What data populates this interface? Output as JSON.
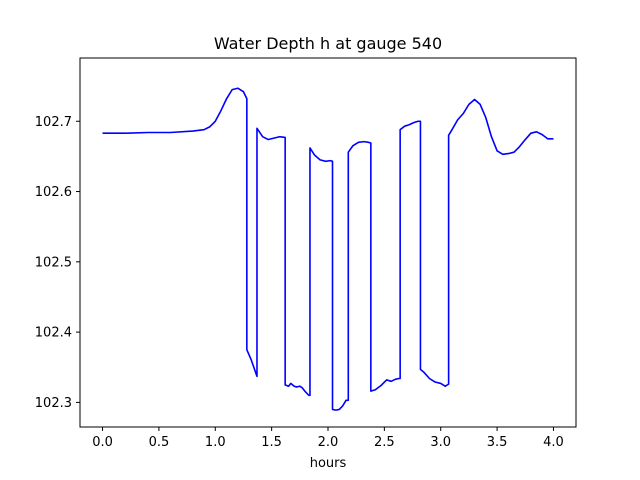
{
  "chart_data": {
    "type": "line",
    "title": "Water Depth h at gauge 540",
    "xlabel": "hours",
    "ylabel": "",
    "xlim": [
      -0.2,
      4.2
    ],
    "ylim": [
      102.265,
      102.79
    ],
    "xticks": [
      0.0,
      0.5,
      1.0,
      1.5,
      2.0,
      2.5,
      3.0,
      3.5,
      4.0
    ],
    "xtick_labels": [
      "0.0",
      "0.5",
      "1.0",
      "1.5",
      "2.0",
      "2.5",
      "3.0",
      "3.5",
      "4.0"
    ],
    "yticks": [
      102.3,
      102.4,
      102.5,
      102.6,
      102.7
    ],
    "ytick_labels": [
      "102.3",
      "102.4",
      "102.5",
      "102.6",
      "102.7"
    ],
    "grid": false,
    "legend": "none",
    "series": [
      {
        "color": "#0000ff",
        "x": [
          0.0,
          0.2,
          0.4,
          0.6,
          0.8,
          0.9,
          0.95,
          1.0,
          1.05,
          1.1,
          1.15,
          1.2,
          1.25,
          1.28,
          1.28,
          1.32,
          1.37,
          1.37,
          1.42,
          1.47,
          1.52,
          1.57,
          1.62,
          1.62,
          1.65,
          1.67,
          1.7,
          1.72,
          1.75,
          1.77,
          1.8,
          1.83,
          1.84,
          1.84,
          1.88,
          1.93,
          1.98,
          2.02,
          2.04,
          2.04,
          2.07,
          2.1,
          2.13,
          2.16,
          2.18,
          2.18,
          2.22,
          2.27,
          2.32,
          2.36,
          2.38,
          2.38,
          2.42,
          2.47,
          2.52,
          2.56,
          2.6,
          2.63,
          2.64,
          2.64,
          2.68,
          2.72,
          2.76,
          2.8,
          2.82,
          2.82,
          2.85,
          2.9,
          2.95,
          3.0,
          3.04,
          3.07,
          3.07,
          3.1,
          3.15,
          3.2,
          3.25,
          3.3,
          3.35,
          3.4,
          3.45,
          3.5,
          3.55,
          3.6,
          3.65,
          3.7,
          3.75,
          3.8,
          3.85,
          3.9,
          3.95,
          4.0
        ],
        "y": [
          102.683,
          102.683,
          102.684,
          102.684,
          102.686,
          102.688,
          102.692,
          102.7,
          102.715,
          102.732,
          102.745,
          102.747,
          102.742,
          102.732,
          102.375,
          102.36,
          102.337,
          102.69,
          102.678,
          102.674,
          102.676,
          102.678,
          102.677,
          102.325,
          102.323,
          102.327,
          102.323,
          102.322,
          102.323,
          102.321,
          102.315,
          102.31,
          102.31,
          102.662,
          102.652,
          102.645,
          102.643,
          102.644,
          102.643,
          102.29,
          102.289,
          102.29,
          102.295,
          102.303,
          102.303,
          102.656,
          102.665,
          102.67,
          102.671,
          102.67,
          102.669,
          102.316,
          102.318,
          102.324,
          102.332,
          102.33,
          102.333,
          102.334,
          102.334,
          102.688,
          102.693,
          102.695,
          102.698,
          102.7,
          102.7,
          102.347,
          102.343,
          102.334,
          102.329,
          102.327,
          102.323,
          102.326,
          102.68,
          102.688,
          102.702,
          102.711,
          102.724,
          102.731,
          102.724,
          102.705,
          102.678,
          102.658,
          102.653,
          102.654,
          102.656,
          102.664,
          102.674,
          102.683,
          102.685,
          102.681,
          102.675,
          102.675
        ]
      }
    ]
  }
}
